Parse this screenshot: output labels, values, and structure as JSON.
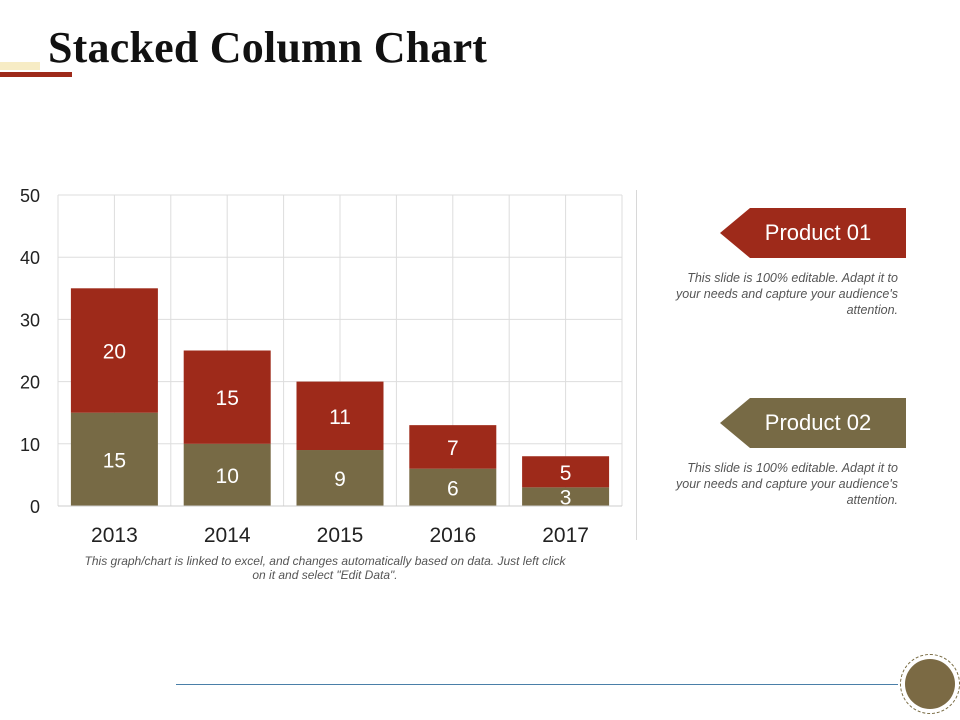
{
  "page": {
    "title": "Stacked Column Chart"
  },
  "colors": {
    "product_01": "#9e2a1a",
    "product_02": "#776a45",
    "grid": "#dddddd",
    "accent_line": "#4a7fa8"
  },
  "chart_note": "This graph/chart is linked to excel, and changes automatically based on data. Just left click on it and select \"Edit Data\".",
  "legend": {
    "items": [
      {
        "label": "Product 01",
        "description": "This slide is 100% editable. Adapt it to your needs and capture your audience's attention."
      },
      {
        "label": "Product 02",
        "description": "This slide is 100% editable. Adapt it to your needs and capture your audience's attention."
      }
    ]
  },
  "chart_data": {
    "type": "bar",
    "stacked": true,
    "categories": [
      "2013",
      "2014",
      "2015",
      "2016",
      "2017"
    ],
    "series": [
      {
        "name": "Product 02",
        "values": [
          15,
          10,
          9,
          6,
          3
        ],
        "color": "#776a45"
      },
      {
        "name": "Product 01",
        "values": [
          20,
          15,
          11,
          7,
          5
        ],
        "color": "#9e2a1a"
      }
    ],
    "ylim": [
      0,
      50
    ],
    "yticks": [
      0,
      10,
      20,
      30,
      40,
      50
    ],
    "grid": true,
    "legend_position": "right",
    "title": "",
    "xlabel": "",
    "ylabel": ""
  }
}
